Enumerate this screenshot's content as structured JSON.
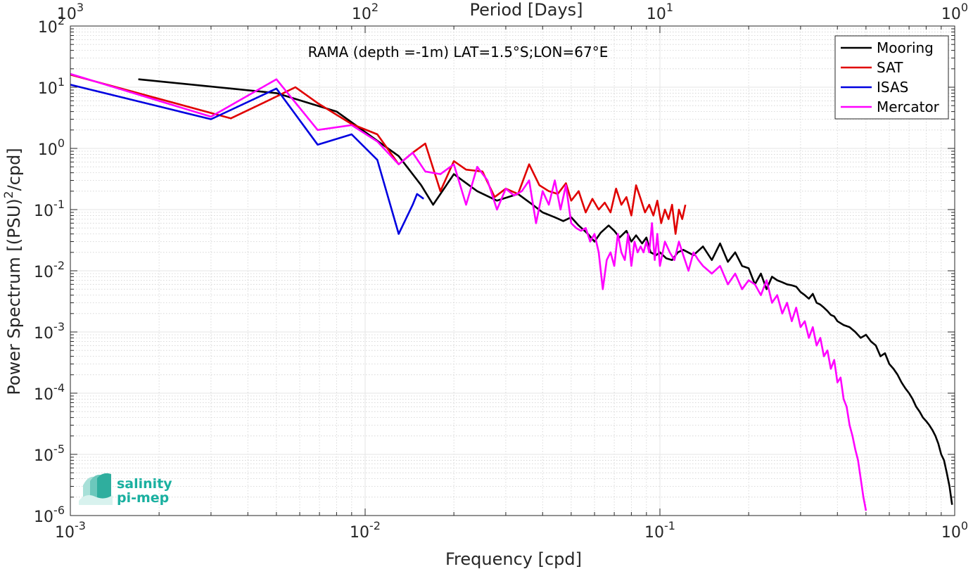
{
  "chart_data": {
    "type": "line",
    "title": "RAMA (depth =-1m) LAT=1.5°S;LON=67°E",
    "xlabel": "Frequency [cpd]",
    "x2label": "Period [Days]",
    "ylabel": "Power Spectrum [(PSU)²/cpd]",
    "x_scale": "log",
    "y_scale": "log",
    "xlim": [
      0.001,
      1
    ],
    "ylim": [
      1e-06,
      100
    ],
    "grid": true,
    "legend_position": "top-right",
    "x_ticks": [
      0.001,
      0.01,
      0.1,
      1
    ],
    "x_tick_labels": [
      {
        "base": "10",
        "exp": "-3"
      },
      {
        "base": "10",
        "exp": "-2"
      },
      {
        "base": "10",
        "exp": "-1"
      },
      {
        "base": "10",
        "exp": "0"
      }
    ],
    "x2_ticks": [
      0.001,
      0.01,
      0.1,
      1
    ],
    "x2_tick_labels": [
      {
        "base": "10",
        "exp": "3"
      },
      {
        "base": "10",
        "exp": "2"
      },
      {
        "base": "10",
        "exp": "1"
      },
      {
        "base": "10",
        "exp": "0"
      }
    ],
    "y_ticks": [
      1e-06,
      1e-05,
      0.0001,
      0.001,
      0.01,
      0.1,
      1,
      10,
      100
    ],
    "y_tick_labels": [
      {
        "base": "10",
        "exp": "-6"
      },
      {
        "base": "10",
        "exp": "-5"
      },
      {
        "base": "10",
        "exp": "-4"
      },
      {
        "base": "10",
        "exp": "-3"
      },
      {
        "base": "10",
        "exp": "-2"
      },
      {
        "base": "10",
        "exp": "-1"
      },
      {
        "base": "10",
        "exp": "0"
      },
      {
        "base": "10",
        "exp": "1"
      },
      {
        "base": "10",
        "exp": "2"
      }
    ],
    "series": [
      {
        "name": "Mooring",
        "color": "#000000",
        "x": [
          0.0017,
          0.005,
          0.008,
          0.013,
          0.0155,
          0.017,
          0.02,
          0.024,
          0.028,
          0.033,
          0.037,
          0.04,
          0.044,
          0.047,
          0.05,
          0.053,
          0.057,
          0.06,
          0.063,
          0.067,
          0.07,
          0.073,
          0.077,
          0.08,
          0.083,
          0.087,
          0.09,
          0.093,
          0.097,
          0.1,
          0.105,
          0.11,
          0.115,
          0.12,
          0.13,
          0.14,
          0.15,
          0.16,
          0.17,
          0.18,
          0.19,
          0.2,
          0.21,
          0.22,
          0.23,
          0.24,
          0.25,
          0.26,
          0.27,
          0.28,
          0.29,
          0.3,
          0.31,
          0.32,
          0.33,
          0.34,
          0.35,
          0.36,
          0.37,
          0.38,
          0.39,
          0.4,
          0.42,
          0.44,
          0.46,
          0.48,
          0.5,
          0.52,
          0.54,
          0.56,
          0.58,
          0.6,
          0.62,
          0.64,
          0.66,
          0.68,
          0.7,
          0.72,
          0.74,
          0.76,
          0.78,
          0.8,
          0.82,
          0.84,
          0.86,
          0.88,
          0.9,
          0.92,
          0.94,
          0.96,
          0.98
        ],
        "y": [
          13.5,
          8.0,
          4.0,
          0.75,
          0.25,
          0.12,
          0.38,
          0.2,
          0.14,
          0.18,
          0.12,
          0.09,
          0.075,
          0.065,
          0.075,
          0.055,
          0.04,
          0.03,
          0.042,
          0.055,
          0.045,
          0.035,
          0.045,
          0.03,
          0.038,
          0.028,
          0.035,
          0.02,
          0.018,
          0.02,
          0.016,
          0.015,
          0.02,
          0.022,
          0.018,
          0.025,
          0.015,
          0.028,
          0.014,
          0.02,
          0.012,
          0.011,
          0.006,
          0.009,
          0.005,
          0.008,
          0.007,
          0.0065,
          0.006,
          0.0058,
          0.0055,
          0.0045,
          0.004,
          0.0035,
          0.0042,
          0.003,
          0.0028,
          0.0025,
          0.0022,
          0.0019,
          0.0018,
          0.0015,
          0.0013,
          0.0012,
          0.001,
          0.0008,
          0.0009,
          0.0007,
          0.0006,
          0.0004,
          0.00045,
          0.0003,
          0.00025,
          0.0002,
          0.00015,
          0.00012,
          0.0001,
          8e-05,
          6e-05,
          5e-05,
          4e-05,
          3.5e-05,
          3e-05,
          2.5e-05,
          2e-05,
          1.5e-05,
          1e-05,
          8e-06,
          5e-06,
          3e-06,
          1.5e-06
        ]
      },
      {
        "name": "SAT",
        "color": "#e00000",
        "x": [
          0.001,
          0.003,
          0.0035,
          0.0045,
          0.0058,
          0.0069,
          0.009,
          0.011,
          0.013,
          0.0145,
          0.016,
          0.018,
          0.02,
          0.022,
          0.025,
          0.0275,
          0.03,
          0.033,
          0.036,
          0.039,
          0.042,
          0.045,
          0.048,
          0.05,
          0.053,
          0.056,
          0.059,
          0.062,
          0.065,
          0.068,
          0.071,
          0.074,
          0.077,
          0.08,
          0.083,
          0.086,
          0.089,
          0.092,
          0.095,
          0.098,
          0.101,
          0.104,
          0.107,
          0.11,
          0.113,
          0.116,
          0.119,
          0.122
        ],
        "y": [
          16.0,
          3.8,
          3.1,
          5.5,
          10.0,
          5.5,
          2.5,
          1.7,
          0.55,
          0.85,
          1.2,
          0.2,
          0.62,
          0.45,
          0.42,
          0.16,
          0.22,
          0.18,
          0.55,
          0.25,
          0.2,
          0.18,
          0.27,
          0.14,
          0.2,
          0.09,
          0.15,
          0.1,
          0.13,
          0.09,
          0.22,
          0.12,
          0.16,
          0.08,
          0.25,
          0.15,
          0.09,
          0.12,
          0.08,
          0.14,
          0.06,
          0.1,
          0.07,
          0.12,
          0.04,
          0.1,
          0.07,
          0.12
        ]
      },
      {
        "name": "ISAS",
        "color": "#0000e0",
        "x": [
          0.001,
          0.003,
          0.005,
          0.0069,
          0.009,
          0.011,
          0.013,
          0.0145,
          0.015,
          0.0158
        ],
        "y": [
          11.0,
          3.0,
          9.5,
          1.15,
          1.7,
          0.65,
          0.04,
          0.12,
          0.18,
          0.15
        ]
      },
      {
        "name": "Mercator",
        "color": "#ff00ff",
        "x": [
          0.001,
          0.003,
          0.005,
          0.0069,
          0.009,
          0.011,
          0.013,
          0.0145,
          0.016,
          0.018,
          0.02,
          0.022,
          0.024,
          0.026,
          0.028,
          0.03,
          0.032,
          0.034,
          0.036,
          0.038,
          0.04,
          0.042,
          0.044,
          0.046,
          0.048,
          0.05,
          0.052,
          0.054,
          0.056,
          0.058,
          0.06,
          0.062,
          0.064,
          0.066,
          0.068,
          0.07,
          0.072,
          0.074,
          0.076,
          0.078,
          0.08,
          0.082,
          0.084,
          0.086,
          0.088,
          0.09,
          0.092,
          0.094,
          0.096,
          0.098,
          0.1,
          0.104,
          0.108,
          0.112,
          0.116,
          0.12,
          0.125,
          0.13,
          0.135,
          0.14,
          0.15,
          0.16,
          0.17,
          0.18,
          0.19,
          0.2,
          0.21,
          0.22,
          0.23,
          0.24,
          0.25,
          0.26,
          0.27,
          0.28,
          0.29,
          0.3,
          0.31,
          0.32,
          0.33,
          0.34,
          0.35,
          0.36,
          0.37,
          0.38,
          0.39,
          0.4,
          0.41,
          0.42,
          0.43,
          0.44,
          0.45,
          0.46,
          0.47,
          0.48,
          0.49,
          0.5
        ],
        "y": [
          16.5,
          3.3,
          13.5,
          2.0,
          2.4,
          1.3,
          0.55,
          0.85,
          0.42,
          0.38,
          0.55,
          0.12,
          0.5,
          0.3,
          0.1,
          0.22,
          0.17,
          0.2,
          0.3,
          0.06,
          0.2,
          0.12,
          0.3,
          0.1,
          0.25,
          0.06,
          0.05,
          0.045,
          0.05,
          0.03,
          0.04,
          0.02,
          0.005,
          0.015,
          0.02,
          0.012,
          0.04,
          0.02,
          0.015,
          0.04,
          0.012,
          0.03,
          0.02,
          0.025,
          0.02,
          0.03,
          0.02,
          0.06,
          0.015,
          0.04,
          0.012,
          0.03,
          0.02,
          0.015,
          0.03,
          0.018,
          0.01,
          0.02,
          0.015,
          0.012,
          0.009,
          0.012,
          0.006,
          0.009,
          0.005,
          0.007,
          0.006,
          0.004,
          0.007,
          0.003,
          0.004,
          0.002,
          0.003,
          0.0015,
          0.0025,
          0.0012,
          0.0015,
          0.0008,
          0.0012,
          0.0006,
          0.0008,
          0.0004,
          0.0005,
          0.00025,
          0.00035,
          0.00015,
          0.00018,
          8e-05,
          6e-05,
          3e-05,
          2e-05,
          1.2e-05,
          8e-06,
          4e-06,
          2e-06,
          1.2e-06
        ]
      }
    ]
  },
  "logo": {
    "line1": "salinity",
    "line2": "pi-mep",
    "color": "#1ab0a0"
  }
}
